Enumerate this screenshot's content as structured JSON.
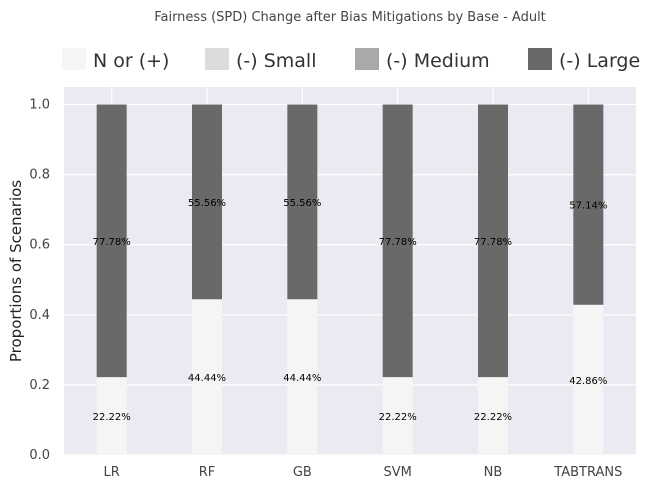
{
  "chart_data": {
    "type": "bar",
    "stacked": true,
    "title": "Fairness (SPD) Change after Bias Mitigations by Base - Adult",
    "xlabel": "",
    "ylabel": "Proportions of Scenarios",
    "categories": [
      "LR",
      "RF",
      "GB",
      "SVM",
      "NB",
      "TABTRANS"
    ],
    "series": [
      {
        "name": "N or (+)",
        "color": "#f5f5f5",
        "values": [
          0.2222,
          0.4444,
          0.4444,
          0.2222,
          0.2222,
          0.4286
        ],
        "labels": [
          "22.22%",
          "44.44%",
          "44.44%",
          "22.22%",
          "22.22%",
          "42.86%"
        ]
      },
      {
        "name": "(-) Small",
        "color": "#dcdcdc",
        "values": [
          0,
          0,
          0,
          0,
          0,
          0
        ],
        "labels": [
          "",
          "",
          "",
          "",
          "",
          ""
        ]
      },
      {
        "name": "(-) Medium",
        "color": "#a9a9a9",
        "values": [
          0,
          0,
          0,
          0,
          0,
          0
        ],
        "labels": [
          "",
          "",
          "",
          "",
          "",
          ""
        ]
      },
      {
        "name": "(-) Large",
        "color": "#696969",
        "values": [
          0.7778,
          0.5556,
          0.5556,
          0.7778,
          0.7778,
          0.5714
        ],
        "labels": [
          "77.78%",
          "55.56%",
          "55.56%",
          "77.78%",
          "77.78%",
          "57.14%"
        ]
      }
    ],
    "ylim": [
      0,
      1.05
    ],
    "yticks": [
      "0.0",
      "0.2",
      "0.4",
      "0.6",
      "0.8",
      "1.0"
    ],
    "ytick_values": [
      0,
      0.2,
      0.4,
      0.6,
      0.8,
      1.0
    ],
    "grid": true,
    "legend_position": "top",
    "background_color": "#eaeaf2"
  }
}
